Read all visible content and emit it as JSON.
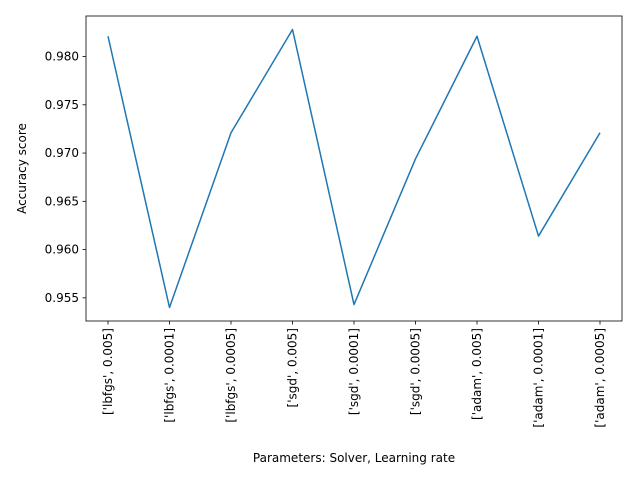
{
  "chart_data": {
    "type": "line",
    "title": "",
    "xlabel": "Parameters: Solver, Learning rate",
    "ylabel": "Accuracy score",
    "categories": [
      "['lbfgs', 0.005]",
      "['lbfgs', 0.0001]",
      "['lbfgs', 0.0005]",
      "['sgd', 0.005]",
      "['sgd', 0.0001]",
      "['sgd', 0.0005]",
      "['adam', 0.005]",
      "['adam', 0.0001]",
      "['adam', 0.0005]"
    ],
    "values": [
      0.9821,
      0.954,
      0.9721,
      0.9828,
      0.9543,
      0.9694,
      0.9821,
      0.9614,
      0.9721
    ],
    "ylim": [
      0.9526,
      0.9842
    ],
    "yticks": [
      0.955,
      0.96,
      0.965,
      0.97,
      0.975,
      0.98
    ],
    "ytick_labels": [
      "0.955",
      "0.960",
      "0.965",
      "0.970",
      "0.975",
      "0.980"
    ],
    "line_color": "#1f77b4",
    "grid": false,
    "legend": "none"
  }
}
